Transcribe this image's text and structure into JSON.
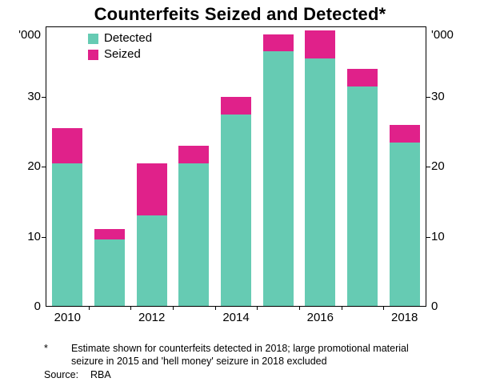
{
  "title": "Counterfeits Seized and Detected*",
  "unit_label": "'000",
  "legend": [
    {
      "label": "Detected",
      "color": "#66cbb3"
    },
    {
      "label": "Seized",
      "color": "#e0218a"
    }
  ],
  "footnote": {
    "marker": "*",
    "text": "Estimate shown for counterfeits detected in 2018; large promotional material seizure in 2015 and 'hell money' seizure in 2018 excluded",
    "source_label": "Source:",
    "source_value": "RBA"
  },
  "chart_data": {
    "type": "bar",
    "stacked": true,
    "title": "Counterfeits Seized and Detected*",
    "xlabel": "",
    "ylabel": "'000",
    "ylim": [
      0,
      40
    ],
    "yticks": [
      0,
      10,
      20,
      30
    ],
    "grid": false,
    "legend_position": "top-left-inside",
    "categories": [
      2010,
      2011,
      2012,
      2013,
      2014,
      2015,
      2016,
      2017,
      2018
    ],
    "x_tick_labels": [
      "2010",
      "2012",
      "2014",
      "2016",
      "2018"
    ],
    "series": [
      {
        "name": "Detected",
        "color": "#66cbb3",
        "values": [
          20.5,
          9.5,
          13,
          20.5,
          27.5,
          36.5,
          35.5,
          31.5,
          23.5
        ]
      },
      {
        "name": "Seized",
        "color": "#e0218a",
        "values": [
          5,
          1.5,
          7.5,
          2.5,
          2.5,
          2.5,
          4,
          2.5,
          2.5
        ]
      }
    ],
    "totals": [
      25.5,
      11,
      20.5,
      23,
      30,
      39,
      39.5,
      34,
      26
    ]
  }
}
